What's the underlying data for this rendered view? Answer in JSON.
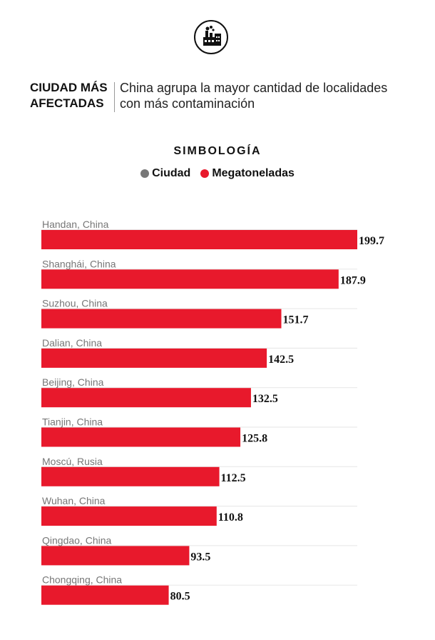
{
  "header": {
    "kicker_line1": "CIUDAD MÁS",
    "kicker_line2": "AFECTADAS",
    "subtitle": "China agrupa la mayor cantidad de localidades con más contaminación",
    "icon": "factory-icon"
  },
  "legend": {
    "title": "SIMBOLOGÍA",
    "items": [
      {
        "label": "Ciudad",
        "color": "#777777"
      },
      {
        "label": "Megatoneladas",
        "color": "#e8192c"
      }
    ]
  },
  "colors": {
    "bar": "#e8192c",
    "track": "#e6e6e6",
    "city_label": "#777777",
    "value_label": "#111111"
  },
  "chart_data": {
    "type": "bar",
    "orientation": "horizontal",
    "categories": [
      "Handan, China",
      "Shanghái, China",
      "Suzhou, China",
      "Dalian, China",
      "Beijing, China",
      "Tianjin, China",
      "Moscú, Rusia",
      "Wuhan, China",
      "Qingdao, China",
      "Chongqing, China"
    ],
    "values": [
      199.7,
      187.9,
      151.7,
      142.5,
      132.5,
      125.8,
      112.5,
      110.8,
      93.5,
      80.5
    ],
    "value_labels": [
      "199.7",
      "187.9",
      "151.7",
      "142.5",
      "132.5",
      "125.8",
      "112.5",
      "110.8",
      "93.5",
      "80.5"
    ],
    "series": [
      {
        "name": "Megatoneladas",
        "values": [
          199.7,
          187.9,
          151.7,
          142.5,
          132.5,
          125.8,
          112.5,
          110.8,
          93.5,
          80.5
        ]
      }
    ],
    "xlim": [
      0,
      199.7
    ],
    "grid": false,
    "legend_position": "top-center"
  }
}
